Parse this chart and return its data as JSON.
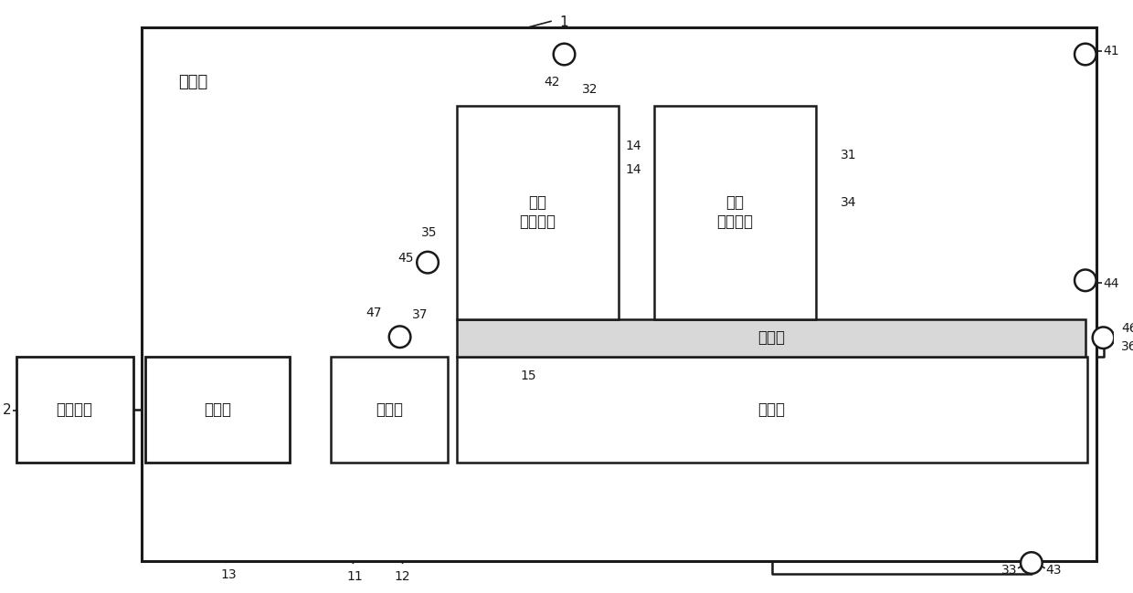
{
  "bg": "#ffffff",
  "lc": "#1a1a1a",
  "t_shenghuata": "生化塔",
  "t_rengong": "人工湿地",
  "t_chendiangchi": "沉淠池",
  "t_tiaojiechi": "调节池",
  "t_queyangchi": "缺氧池",
  "t_jishuichi": "集水池",
  "t_di2": "第二\n滴滤装置",
  "t_di1": "第一\n滴滤装置"
}
